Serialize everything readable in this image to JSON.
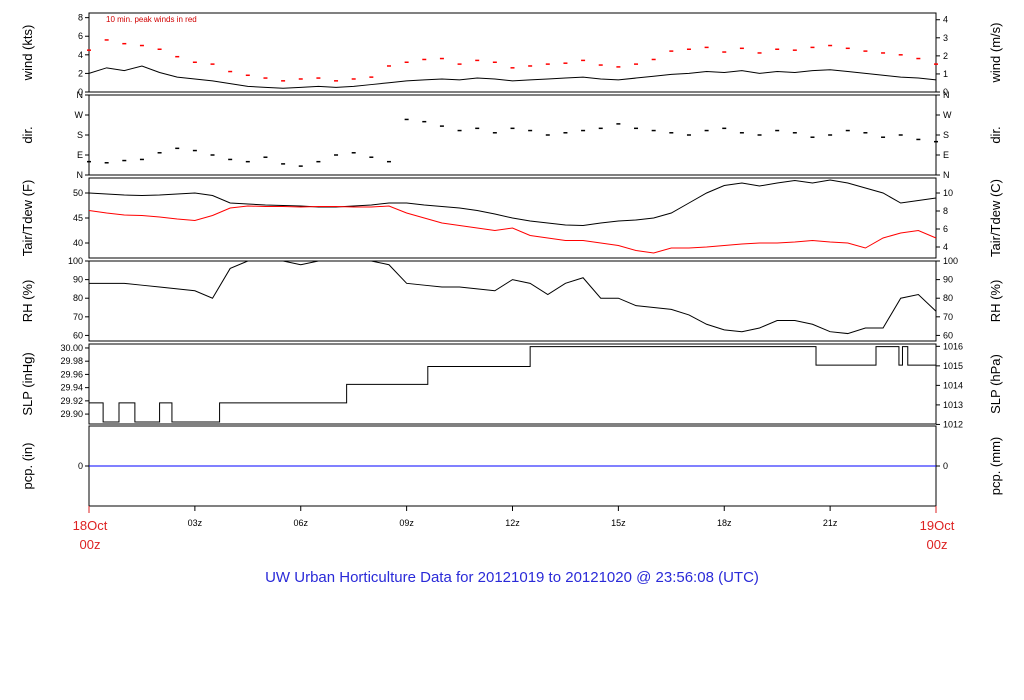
{
  "title": "UW Urban Horticulture Data for 20121019  to  20121020 @ 23:56:08  (UTC)",
  "colors": {
    "black": "#000000",
    "red": "#ff0000",
    "blue": "#0000ff",
    "title": "#2a2ad8",
    "edge_labels": "#dd2222"
  },
  "time_axis": {
    "start_label": [
      "18Oct",
      "00z"
    ],
    "end_label": [
      "19Oct",
      "00z"
    ],
    "tick_hours": [
      3,
      6,
      9,
      12,
      15,
      18,
      21
    ],
    "tick_labels": [
      "03z",
      "06z",
      "09z",
      "12z",
      "15z",
      "18z",
      "21z"
    ],
    "range_hours": [
      0,
      24
    ]
  },
  "chart_data": [
    {
      "type": "line",
      "panel": "wind",
      "ylabel_left": "wind (kts)",
      "ylabel_right": "wind (m/s)",
      "ylim": [
        0,
        8.5
      ],
      "ticks_left": [
        0,
        2,
        4,
        6,
        8
      ],
      "ticks_right": [
        0,
        1,
        2,
        3,
        4
      ],
      "annotation": "10 min. peak winds in red",
      "series": [
        {
          "color": "#000000",
          "x": [
            0,
            0.5,
            1,
            1.5,
            2,
            2.5,
            3,
            3.5,
            4,
            4.5,
            5,
            5.5,
            6,
            6.5,
            7,
            7.5,
            8,
            8.5,
            9,
            9.5,
            10,
            10.5,
            11,
            11.5,
            12,
            12.5,
            13,
            13.5,
            14,
            14.5,
            15,
            15.5,
            16,
            16.5,
            17,
            17.5,
            18,
            18.5,
            19,
            19.5,
            20,
            20.5,
            21,
            21.5,
            22,
            22.5,
            23,
            23.5,
            24
          ],
          "y": [
            2,
            2.6,
            2.3,
            2.8,
            2.1,
            1.6,
            1.4,
            1.2,
            0.9,
            0.6,
            0.5,
            0.4,
            0.5,
            0.6,
            0.5,
            0.6,
            0.8,
            1.0,
            1.2,
            1.3,
            1.4,
            1.3,
            1.5,
            1.4,
            1.2,
            1.3,
            1.4,
            1.5,
            1.6,
            1.4,
            1.3,
            1.5,
            1.7,
            1.9,
            2.0,
            2.2,
            2.1,
            2.3,
            2.0,
            2.2,
            2.1,
            2.3,
            2.4,
            2.2,
            2.0,
            1.8,
            1.6,
            1.5,
            1.3
          ]
        },
        {
          "color": "#ff0000",
          "marker": "dash",
          "x": [
            0,
            0.5,
            1,
            1.5,
            2,
            2.5,
            3,
            3.5,
            4,
            4.5,
            5,
            5.5,
            6,
            6.5,
            7,
            7.5,
            8,
            8.5,
            9,
            9.5,
            10,
            10.5,
            11,
            11.5,
            12,
            12.5,
            13,
            13.5,
            14,
            14.5,
            15,
            15.5,
            16,
            16.5,
            17,
            17.5,
            18,
            18.5,
            19,
            19.5,
            20,
            20.5,
            21,
            21.5,
            22,
            22.5,
            23,
            23.5,
            24
          ],
          "y": [
            4.5,
            5.6,
            5.2,
            5.0,
            4.6,
            3.8,
            3.2,
            3.0,
            2.2,
            1.8,
            1.5,
            1.2,
            1.4,
            1.5,
            1.2,
            1.4,
            1.6,
            2.8,
            3.2,
            3.5,
            3.6,
            3.0,
            3.4,
            3.2,
            2.6,
            2.8,
            3.0,
            3.1,
            3.4,
            2.9,
            2.7,
            3.0,
            3.5,
            4.4,
            4.6,
            4.8,
            4.3,
            4.7,
            4.2,
            4.6,
            4.5,
            4.8,
            5.0,
            4.7,
            4.4,
            4.2,
            4.0,
            3.6,
            3.0
          ]
        }
      ]
    },
    {
      "type": "scatter",
      "panel": "dir",
      "ylabel_left": "dir.",
      "ylabel_right": "dir.",
      "ylim": [
        0,
        360
      ],
      "ticks_left": [
        "N",
        "E",
        "S",
        "W",
        "N"
      ],
      "ticks_right": [
        "N",
        "E",
        "S",
        "W",
        "N"
      ],
      "series": [
        {
          "color": "#000000",
          "x": [
            0,
            0.5,
            1,
            1.5,
            2,
            2.5,
            3,
            3.5,
            4,
            4.5,
            5,
            5.5,
            6,
            6.5,
            7,
            7.5,
            8,
            8.5,
            9,
            9.5,
            10,
            10.5,
            11,
            11.5,
            12,
            12.5,
            13,
            13.5,
            14,
            14.5,
            15,
            15.5,
            16,
            16.5,
            17,
            17.5,
            18,
            18.5,
            19,
            19.5,
            20,
            20.5,
            21,
            21.5,
            22,
            22.5,
            23,
            23.5,
            24
          ],
          "y": [
            60,
            55,
            65,
            70,
            100,
            120,
            110,
            90,
            70,
            60,
            80,
            50,
            40,
            60,
            90,
            100,
            80,
            60,
            250,
            240,
            220,
            200,
            210,
            190,
            210,
            200,
            180,
            190,
            200,
            210,
            230,
            210,
            200,
            190,
            180,
            200,
            210,
            190,
            180,
            200,
            190,
            170,
            180,
            200,
            190,
            170,
            180,
            160,
            150
          ]
        }
      ]
    },
    {
      "type": "line",
      "panel": "temperature",
      "ylabel_left": "Tair/Tdew (F)",
      "ylabel_right": "Tair/Tdew (C)",
      "ylim": [
        37,
        53
      ],
      "ticks_left": [
        40,
        45,
        50
      ],
      "ticks_right": [
        4,
        6,
        8,
        10
      ],
      "series": [
        {
          "color": "#000000",
          "x": [
            0,
            0.5,
            1,
            1.5,
            2,
            2.5,
            3,
            3.5,
            4,
            4.5,
            5,
            5.5,
            6,
            6.5,
            7,
            7.5,
            8,
            8.5,
            9,
            9.5,
            10,
            10.5,
            11,
            11.5,
            12,
            12.5,
            13,
            13.5,
            14,
            14.5,
            15,
            15.5,
            16,
            16.5,
            17,
            17.5,
            18,
            18.5,
            19,
            19.5,
            20,
            20.5,
            21,
            21.5,
            22,
            22.5,
            23,
            23.5,
            24
          ],
          "y": [
            50,
            49.8,
            49.6,
            49.5,
            49.6,
            49.8,
            50,
            49.5,
            48,
            47.8,
            47.6,
            47.5,
            47.4,
            47.2,
            47.2,
            47.4,
            47.6,
            48,
            48,
            47.6,
            47.3,
            47,
            46.5,
            45.8,
            45,
            44.4,
            44,
            43.6,
            43.5,
            44,
            44.4,
            44.6,
            45,
            46,
            48,
            50,
            51.5,
            52,
            51.4,
            52,
            52.5,
            52,
            52.6,
            52,
            51,
            50,
            48,
            48.5,
            49
          ]
        },
        {
          "color": "#ff0000",
          "x": [
            0,
            0.5,
            1,
            1.5,
            2,
            2.5,
            3,
            3.5,
            4,
            4.5,
            5,
            5.5,
            6,
            6.5,
            7,
            7.5,
            8,
            8.5,
            9,
            9.5,
            10,
            10.5,
            11,
            11.5,
            12,
            12.5,
            13,
            13.5,
            14,
            14.5,
            15,
            15.5,
            16,
            16.5,
            17,
            17.5,
            18,
            18.5,
            19,
            19.5,
            20,
            20.5,
            21,
            21.5,
            22,
            22.5,
            23,
            23.5,
            24
          ],
          "y": [
            46.5,
            46,
            45.6,
            45.5,
            45.2,
            44.8,
            44.5,
            45.5,
            47,
            47.4,
            47.3,
            47.3,
            47.2,
            47.3,
            47.3,
            47.2,
            47.2,
            47.4,
            46,
            45,
            44,
            43.5,
            43,
            42.5,
            43,
            41.5,
            41,
            40.5,
            40.5,
            40,
            39.5,
            38.5,
            38,
            39,
            39,
            39.2,
            39.5,
            39.8,
            40,
            40,
            40.2,
            40.5,
            40.2,
            40,
            39,
            41,
            42,
            42.5,
            41
          ]
        }
      ]
    },
    {
      "type": "line",
      "panel": "rh",
      "ylabel_left": "RH (%)",
      "ylabel_right": "RH (%)",
      "ylim": [
        57,
        100
      ],
      "ticks_left": [
        60,
        70,
        80,
        90,
        100
      ],
      "ticks_right": [
        60,
        70,
        80,
        90,
        100
      ],
      "series": [
        {
          "color": "#000000",
          "x": [
            0,
            0.5,
            1,
            1.5,
            2,
            2.5,
            3,
            3.5,
            4,
            4.5,
            5,
            5.5,
            6,
            6.5,
            7,
            7.5,
            8,
            8.5,
            9,
            9.5,
            10,
            10.5,
            11,
            11.5,
            12,
            12.5,
            13,
            13.5,
            14,
            14.5,
            15,
            15.5,
            16,
            16.5,
            17,
            17.5,
            18,
            18.5,
            19,
            19.5,
            20,
            20.5,
            21,
            21.5,
            22,
            22.5,
            23,
            23.5,
            24
          ],
          "y": [
            88,
            88,
            88,
            87,
            86,
            85,
            84,
            80,
            96,
            100,
            100,
            100,
            98,
            100,
            100,
            100,
            100,
            98,
            88,
            87,
            86,
            86,
            85,
            84,
            90,
            88,
            82,
            88,
            91,
            80,
            80,
            76,
            75,
            74,
            71,
            66,
            63,
            62,
            64,
            68,
            68,
            66,
            62,
            61,
            64,
            64,
            80,
            82,
            73
          ]
        }
      ]
    },
    {
      "type": "line",
      "panel": "pressure",
      "ylabel_left": "SLP (inHg)",
      "ylabel_right": "SLP (hPa)",
      "ylim": [
        29.885,
        30.006
      ],
      "ticks_left": [
        "29.90",
        "29.92",
        "29.94",
        "29.96",
        "29.98",
        "30.00"
      ],
      "ticks_right": [
        1012,
        1013,
        1014,
        1015,
        1016
      ],
      "series": [
        {
          "color": "#000000",
          "step": true,
          "x": [
            0,
            0.4,
            0.85,
            1.3,
            2.0,
            2.35,
            3.7,
            7.3,
            9.6,
            12.5,
            20.6,
            22.3,
            22.95,
            23.05,
            23.2,
            24
          ],
          "y": [
            29.917,
            29.888,
            29.917,
            29.888,
            29.917,
            29.888,
            29.917,
            29.945,
            29.972,
            30.002,
            29.974,
            30.002,
            29.974,
            30.002,
            29.974,
            29.974
          ]
        }
      ]
    },
    {
      "type": "line",
      "panel": "precip",
      "ylabel_left": "pcp. (in)",
      "ylabel_right": "pcp. (mm)",
      "ylim": [
        -1,
        1
      ],
      "ticks_left": [
        0
      ],
      "ticks_right": [
        0
      ],
      "series": [
        {
          "color": "#0000ff",
          "x": [
            0,
            24
          ],
          "y": [
            0,
            0
          ]
        }
      ]
    }
  ]
}
